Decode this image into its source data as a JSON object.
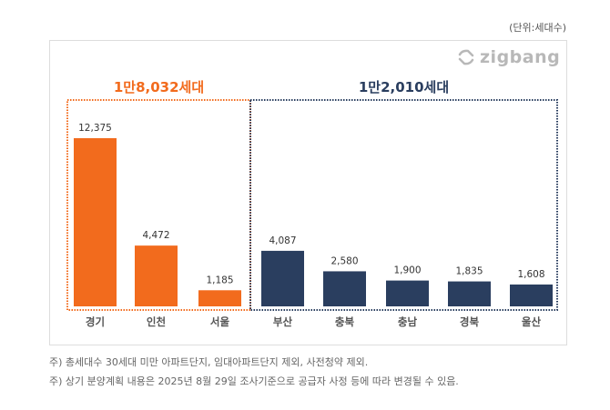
{
  "unit_label": "(단위:세대수)",
  "logo_text": "zigbang",
  "notes": [
    "주) 총세대수 30세대 미만 아파트단지, 임대아파트단지 제외, 사전청약 제외.",
    "주) 상기 분양계획 내용은 2025년 8월 29일 조사기준으로 공급자 사정 등에 따라 변경될 수 있음."
  ],
  "chart_data": {
    "type": "bar",
    "title": "",
    "xlabel": "",
    "ylabel": "",
    "grid": false,
    "categories": [
      "경기",
      "인천",
      "서울",
      "부산",
      "충북",
      "충남",
      "경북",
      "울산"
    ],
    "values": [
      12375,
      4472,
      1185,
      4087,
      2580,
      1900,
      1835,
      1608
    ],
    "data_labels": [
      "12,375",
      "4,472",
      "1,185",
      "4,087",
      "2,580",
      "1,900",
      "1,835",
      "1,608"
    ],
    "groups": [
      {
        "label": "1만8,032세대",
        "categories": [
          "경기",
          "인천",
          "서울"
        ],
        "color": "#F26B1D"
      },
      {
        "label": "1만2,010세대",
        "categories": [
          "부산",
          "충북",
          "충남",
          "경북",
          "울산"
        ],
        "color": "#2A3E5F"
      }
    ]
  }
}
